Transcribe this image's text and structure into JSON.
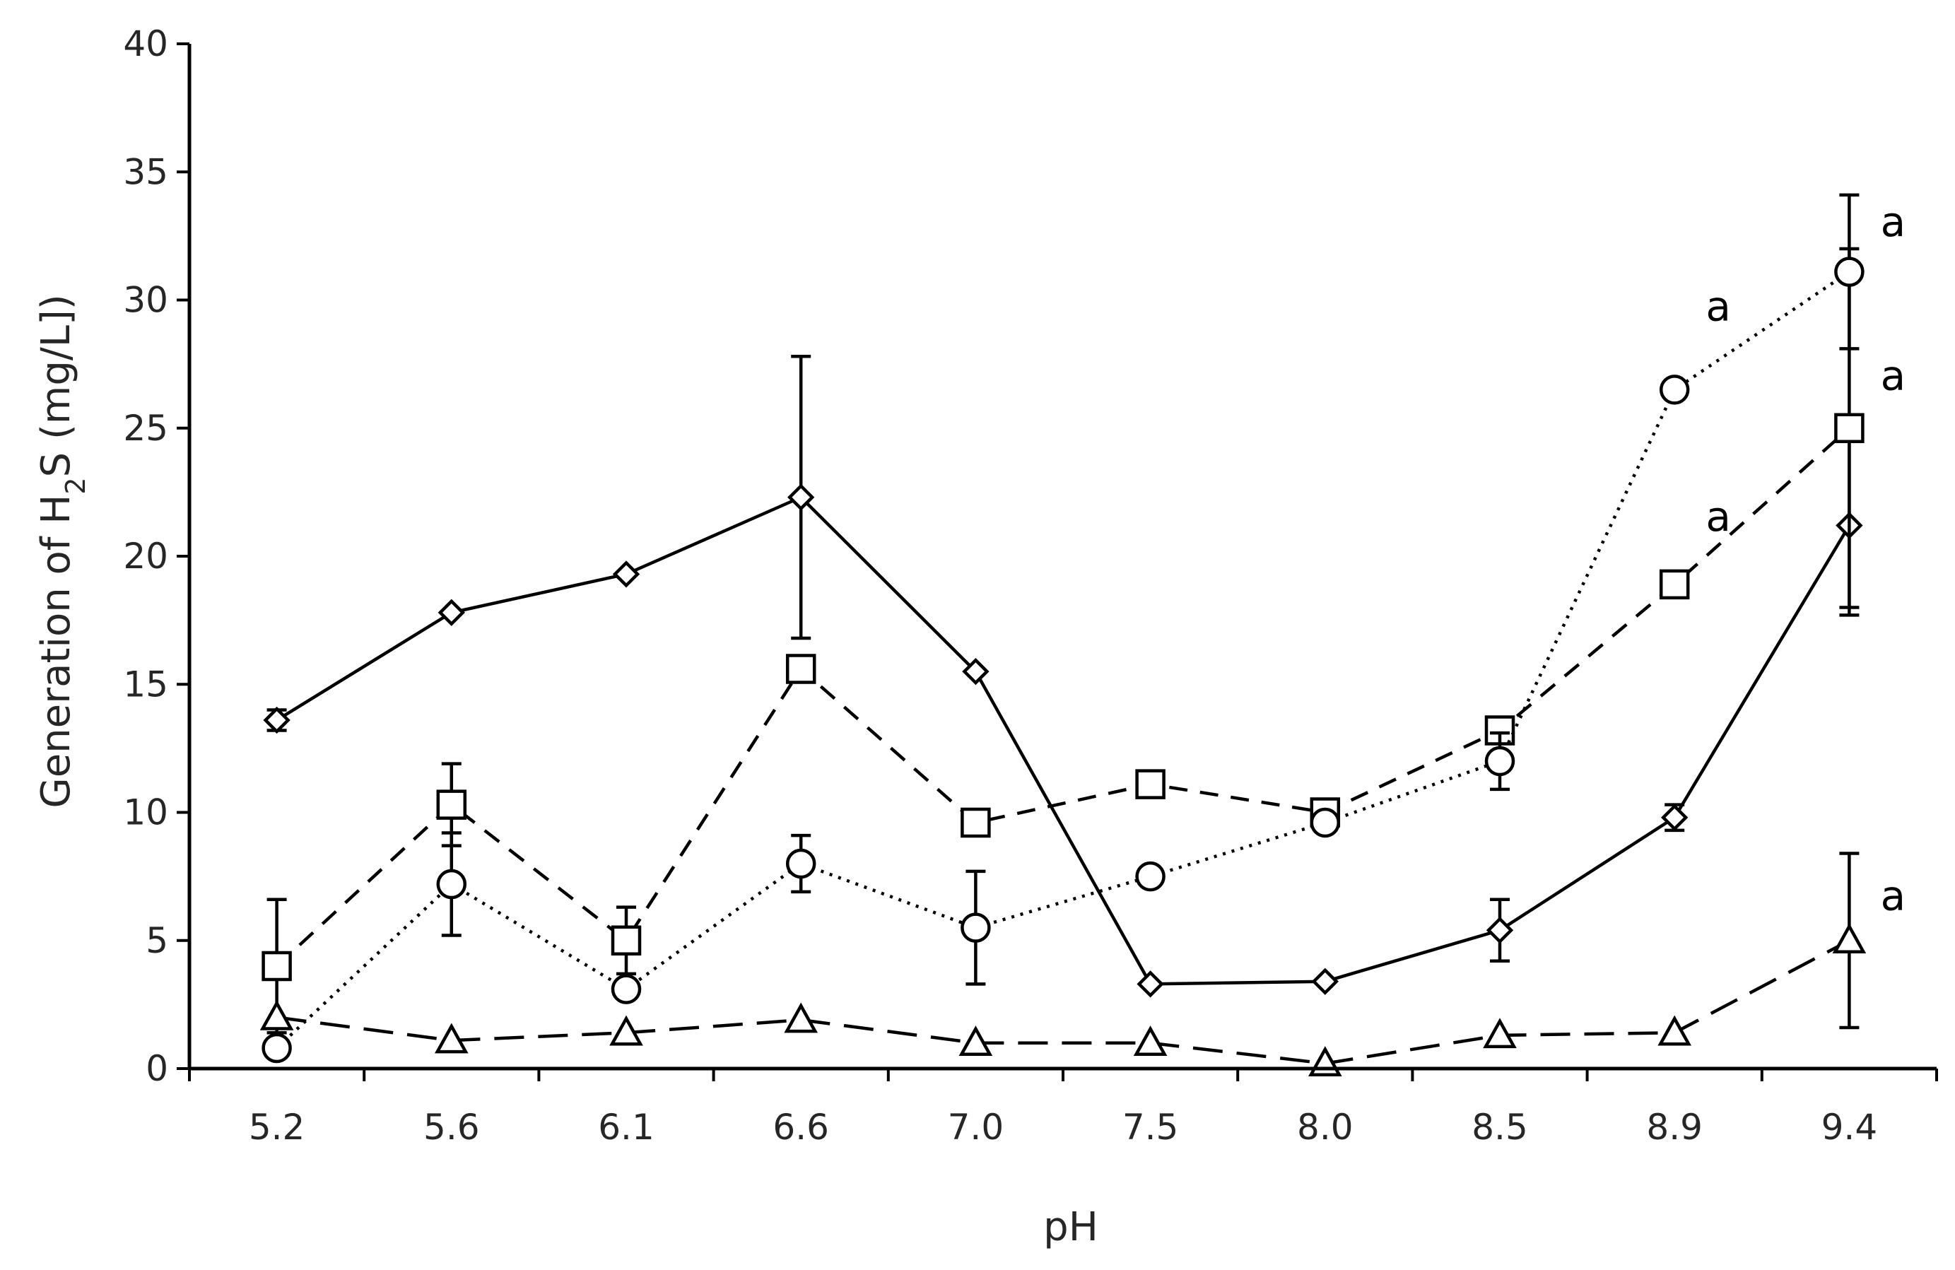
{
  "chart_data": {
    "type": "line",
    "xlabel": "pH",
    "ylabel": {
      "pre": "Generation of H",
      "sub": "2",
      "post": "S (mg/L])"
    },
    "categories": [
      "5.2",
      "5.6",
      "6.1",
      "6.6",
      "7.0",
      "7.5",
      "8.0",
      "8.5",
      "8.9",
      "9.4"
    ],
    "ylim": [
      0,
      40
    ],
    "yticks": [
      0,
      5,
      10,
      15,
      20,
      25,
      30,
      35,
      40
    ],
    "yticklabels": [
      "0",
      "5",
      "10",
      "15",
      "20",
      "25",
      "30",
      "35",
      "40"
    ],
    "grid": false,
    "series": [
      {
        "marker": "diamond",
        "line": "solid",
        "values": [
          13.6,
          17.8,
          19.3,
          22.3,
          15.5,
          3.3,
          3.4,
          5.4,
          9.8,
          21.2
        ],
        "errors": [
          0.4,
          0,
          0,
          5.5,
          0,
          0,
          0,
          1.2,
          0.5,
          3.5
        ]
      },
      {
        "marker": "square",
        "line": "dashed",
        "values": [
          4.0,
          10.3,
          5.0,
          15.6,
          9.6,
          11.1,
          10.0,
          13.2,
          18.9,
          25.0
        ],
        "errors": [
          2.6,
          1.6,
          1.3,
          0,
          0,
          0,
          0,
          0,
          0,
          7.0
        ]
      },
      {
        "marker": "circle",
        "line": "dotted",
        "values": [
          0.8,
          7.2,
          3.1,
          8.0,
          5.5,
          7.5,
          9.6,
          12.0,
          26.5,
          31.1
        ],
        "errors": [
          0,
          2.0,
          0,
          1.1,
          2.2,
          0,
          0,
          1.1,
          0,
          3.0
        ]
      },
      {
        "marker": "triangle",
        "line": "longdash",
        "values": [
          2.0,
          1.1,
          1.4,
          1.9,
          1.0,
          1.0,
          0.2,
          1.3,
          1.4,
          5.0
        ],
        "errors": [
          0,
          0,
          0,
          0,
          0,
          0,
          0,
          0,
          0,
          3.4
        ]
      }
    ],
    "annotations": [
      {
        "text": "a",
        "x": "8.9",
        "y": 29.2
      },
      {
        "text": "a",
        "x": "8.9",
        "y": 21.0
      },
      {
        "text": "a",
        "x": "9.4",
        "y": 32.5
      },
      {
        "text": "a",
        "x": "9.4",
        "y": 26.5
      },
      {
        "text": "a",
        "x": "9.4",
        "y": 6.2
      }
    ]
  }
}
